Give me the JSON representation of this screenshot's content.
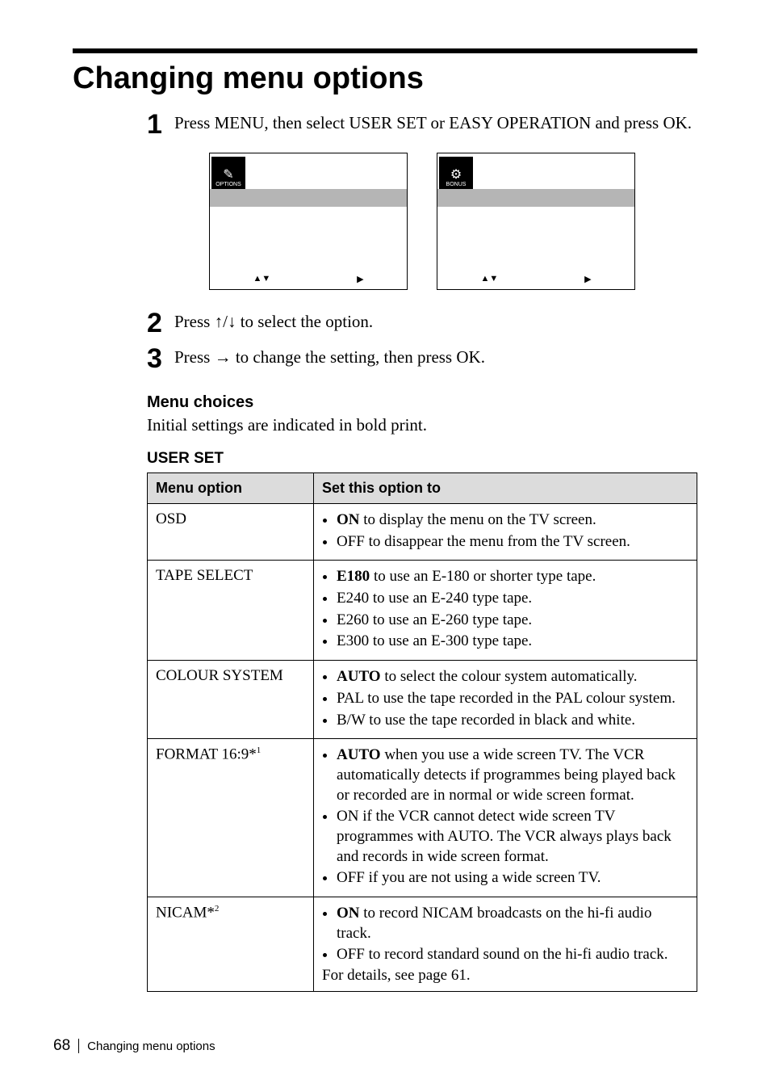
{
  "title": "Changing menu options",
  "steps": [
    {
      "num": "1",
      "text_parts": [
        "Press MENU, then select USER SET or EASY OPERATION and press OK."
      ]
    },
    {
      "num": "2",
      "text_parts": [
        "Press ",
        "↑",
        "/",
        "↓",
        " to select the option."
      ]
    },
    {
      "num": "3",
      "text_parts": [
        "Press ",
        "→",
        " to change the setting, then press OK."
      ]
    }
  ],
  "screens": [
    {
      "icon_label": "OPTIONS",
      "icon_glyph": "✎",
      "nav_left": "▲▼",
      "nav_right": "▶"
    },
    {
      "icon_label": "BONUS",
      "icon_glyph": "⚙",
      "nav_left": "▲▼",
      "nav_right": "▶"
    }
  ],
  "menu_choices_heading": "Menu choices",
  "menu_choices_intro": "Initial settings are indicated in bold print.",
  "table_title": "USER SET",
  "table": {
    "headers": [
      "Menu option",
      "Set this option to"
    ],
    "rows": [
      {
        "option": "OSD",
        "items": [
          {
            "bold": "ON",
            "rest": " to display the menu on the TV screen."
          },
          {
            "bold": "",
            "rest": "OFF to disappear the menu from the TV screen."
          }
        ],
        "trailer": ""
      },
      {
        "option": "TAPE SELECT",
        "items": [
          {
            "bold": "E180",
            "rest": " to use an E-180 or shorter type tape."
          },
          {
            "bold": "",
            "rest": "E240 to use an E-240 type tape."
          },
          {
            "bold": "",
            "rest": "E260 to use an E-260 type tape."
          },
          {
            "bold": "",
            "rest": "E300 to use an E-300 type tape."
          }
        ],
        "trailer": ""
      },
      {
        "option": "COLOUR SYSTEM",
        "items": [
          {
            "bold": "AUTO",
            "rest": " to select the colour system automatically."
          },
          {
            "bold": "",
            "rest": "PAL to use the tape recorded in the PAL colour system."
          },
          {
            "bold": "",
            "rest": "B/W to use the tape recorded in black and white."
          }
        ],
        "trailer": ""
      },
      {
        "option_html": "FORMAT 16:9*<span class=\"sup\">1</span>",
        "items": [
          {
            "bold": "AUTO",
            "rest": " when you use a wide screen TV.  The VCR automatically detects if programmes being played back or recorded are in normal or wide screen format."
          },
          {
            "bold": "",
            "rest": "ON if the VCR cannot detect wide screen TV programmes with AUTO.  The VCR always plays back and records in wide screen format."
          },
          {
            "bold": "",
            "rest": "OFF if you are not using a wide screen TV."
          }
        ],
        "trailer": ""
      },
      {
        "option_html": "NICAM*<span class=\"sup\">2</span>",
        "items": [
          {
            "bold": "ON",
            "rest": " to record NICAM broadcasts on the hi-fi audio track."
          },
          {
            "bold": "",
            "rest": "OFF to record standard sound on the hi-fi audio track."
          }
        ],
        "trailer": "For details, see page 61."
      }
    ]
  },
  "footer": {
    "page": "68",
    "text": "Changing menu options"
  }
}
